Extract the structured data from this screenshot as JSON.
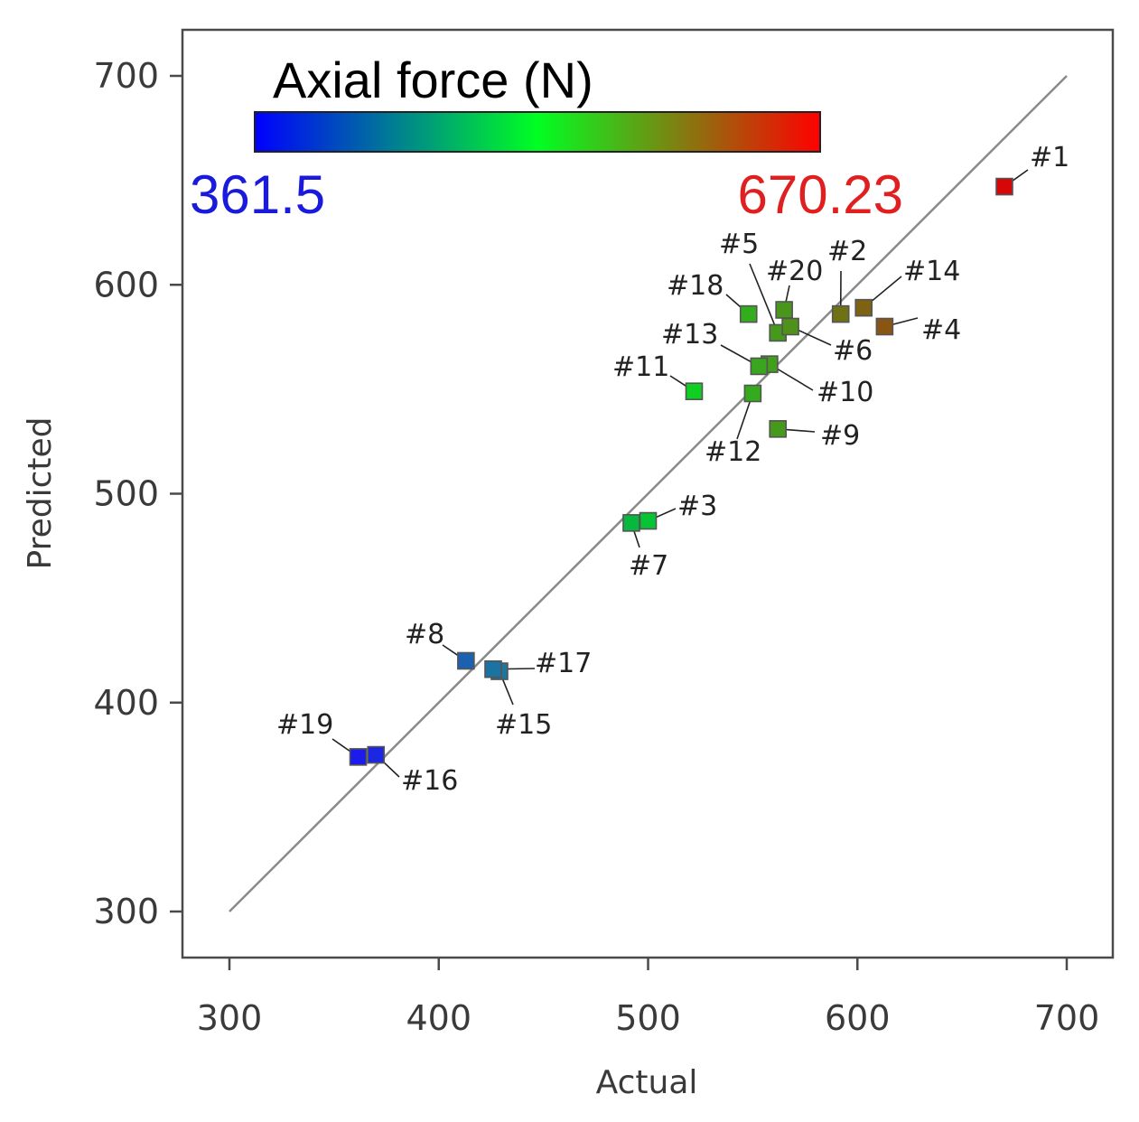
{
  "chart_data": {
    "type": "scatter",
    "xlabel": "Actual",
    "ylabel": "Predicted",
    "xlim": [
      280,
      722
    ],
    "ylim": [
      278,
      722
    ],
    "x_ticks": [
      300,
      400,
      500,
      600,
      700
    ],
    "y_ticks": [
      300,
      400,
      500,
      600,
      700
    ],
    "reference_line": {
      "from": [
        300,
        300
      ],
      "to": [
        700,
        700
      ],
      "color": "#8a8a8a"
    },
    "colorbar": {
      "title": "Axial force (N)",
      "min_label": "361.5",
      "max_label": "670.23",
      "min": 361.5,
      "max": 670.23,
      "colors": [
        "#0000ff",
        "#00ff22",
        "#ff0000"
      ]
    },
    "points": [
      {
        "label": "#1",
        "actual": 670.23,
        "predicted": 647
      },
      {
        "label": "#2",
        "actual": 592,
        "predicted": 586
      },
      {
        "label": "#3",
        "actual": 500,
        "predicted": 487
      },
      {
        "label": "#4",
        "actual": 613,
        "predicted": 580
      },
      {
        "label": "#5",
        "actual": 562,
        "predicted": 577
      },
      {
        "label": "#6",
        "actual": 568,
        "predicted": 580
      },
      {
        "label": "#7",
        "actual": 492,
        "predicted": 486
      },
      {
        "label": "#8",
        "actual": 413,
        "predicted": 420
      },
      {
        "label": "#9",
        "actual": 562,
        "predicted": 531
      },
      {
        "label": "#10",
        "actual": 558,
        "predicted": 562
      },
      {
        "label": "#11",
        "actual": 522,
        "predicted": 549
      },
      {
        "label": "#12",
        "actual": 550,
        "predicted": 548
      },
      {
        "label": "#13",
        "actual": 553,
        "predicted": 561
      },
      {
        "label": "#14",
        "actual": 603,
        "predicted": 589
      },
      {
        "label": "#15",
        "actual": 429,
        "predicted": 415
      },
      {
        "label": "#16",
        "actual": 370,
        "predicted": 375
      },
      {
        "label": "#17",
        "actual": 426,
        "predicted": 416
      },
      {
        "label": "#18",
        "actual": 548,
        "predicted": 586
      },
      {
        "label": "#19",
        "actual": 361.5,
        "predicted": 374
      },
      {
        "label": "#20",
        "actual": 565,
        "predicted": 588
      }
    ]
  }
}
